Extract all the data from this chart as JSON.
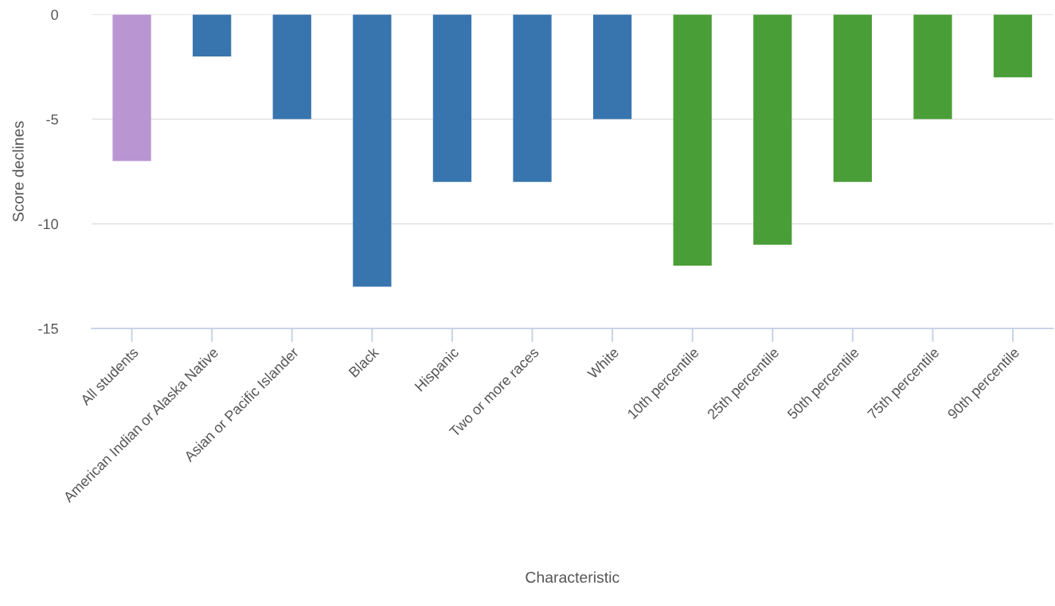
{
  "chart_data": {
    "type": "bar",
    "xlabel": "Characteristic",
    "ylabel": "Score declines",
    "categories": [
      "All students",
      "American Indian or Alaska Native",
      "Asian or Pacific Islander",
      "Black",
      "Hispanic",
      "Two or more races",
      "White",
      "10th percentile",
      "25th percentile",
      "50th percentile",
      "75th percentile",
      "90th percentile"
    ],
    "values": [
      -7,
      -2,
      -5,
      -13,
      -8,
      -8,
      -5,
      -12,
      -11,
      -8,
      -5,
      -3
    ],
    "colors": [
      "#b995d2",
      "#3875af",
      "#3875af",
      "#3875af",
      "#3875af",
      "#3875af",
      "#3875af",
      "#4a9e37",
      "#4a9e37",
      "#4a9e37",
      "#4a9e37",
      "#4a9e37"
    ],
    "ylim": [
      -15,
      0
    ],
    "yticks": [
      -15,
      -10,
      -5,
      0
    ],
    "grid": "y"
  }
}
